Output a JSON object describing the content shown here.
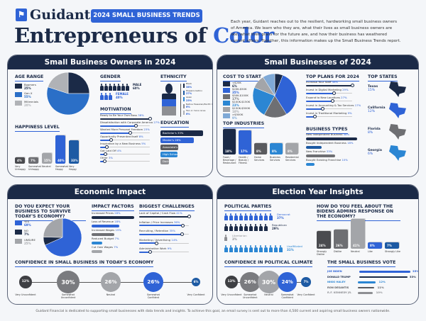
{
  "header": {
    "brand": "Guidant",
    "badge": "2024 SMALL BUSINESS TRENDS",
    "title_main": "Entrepreneurs of ",
    "title_accent": "Color",
    "intro": "Each year, Guidant reaches out to the resilient, hardworking small business owners of America. We learn who they are, what their lives as small business owners are like, what their plans for the future are, and how their business has weathered current affairs. Together, this information makes up the Small Business Trends report."
  },
  "colors": {
    "navy": "#1b2a47",
    "blue": "#2f63d6",
    "mid_blue": "#2b86d3",
    "gray": "#8e8f93",
    "dark_gray": "#5a5b5f",
    "light_gray": "#b0b2b6"
  },
  "owners": {
    "title": "Small Business Owners in 2024",
    "age": {
      "heading": "AGE RANGE",
      "items": [
        {
          "label": "Boomers",
          "value": "25%",
          "v": 25,
          "color": "#1b2a47"
        },
        {
          "label": "Gen X",
          "value": "55%",
          "v": 55,
          "color": "#2b6fc7"
        },
        {
          "label": "Millennials",
          "value": "20%",
          "v": 20,
          "color": "#b0b2b6"
        }
      ]
    },
    "happiness": {
      "heading": "HAPPINESS LEVEL",
      "items": [
        {
          "label": "Very Unhappy",
          "value": "4%",
          "v": 4,
          "color": "#4a4b4f"
        },
        {
          "label": "Somewhat Unhappy",
          "value": "7%",
          "v": 7,
          "color": "#6e6f73"
        },
        {
          "label": "Neutral",
          "value": "15%",
          "v": 15,
          "color": "#a3a5a9"
        },
        {
          "label": "Somewhat Happy",
          "value": "40%",
          "v": 40,
          "color": "#2f63d6"
        },
        {
          "label": "Very Happy",
          "value": "33%",
          "v": 33,
          "color": "#1d5aa3"
        }
      ]
    },
    "gender": {
      "heading": "GENDER",
      "items": [
        {
          "label": "MALE",
          "value": "60%",
          "icons": 7,
          "color": "#1b2a47"
        },
        {
          "label": "FEMALE",
          "value": "40%",
          "icons": 3,
          "color": "#2f63d6"
        }
      ]
    },
    "ethnicity": {
      "heading": "ETHNICITY",
      "items": [
        {
          "label": "Black",
          "value": "38%",
          "color": "#1b2a47"
        },
        {
          "label": "Hispanic/Latino",
          "value": "27%",
          "color": "#1d5aa3"
        },
        {
          "label": "Asian",
          "value": "23%",
          "color": "#2b86d3"
        },
        {
          "label": "Native Hawaiian/Pacific Islander",
          "value": "6%",
          "color": "#8e8f93"
        },
        {
          "label": "Two or more races",
          "value": "6%",
          "color": "#b0b2b6"
        }
      ]
    },
    "motivation": {
      "heading": "MOTIVATION",
      "items": [
        {
          "label": "Ready to Be Your Own Boss",
          "value": "38%",
          "v": 38
        },
        {
          "label": "Dissatisfaction with Corporate America",
          "value": "27%",
          "v": 27
        },
        {
          "label": "Wanted More Personal Freedom",
          "value": "23%",
          "v": 23
        },
        {
          "label": "Opportunity Presented Itself",
          "value": "8%",
          "v": 8
        },
        {
          "label": "Inspiration by a New Business",
          "value": "5%",
          "v": 5
        },
        {
          "label": "Got Laid Off",
          "value": "4%",
          "v": 4
        },
        {
          "label": "Other",
          "value": "3%",
          "v": 3
        }
      ]
    },
    "education": {
      "heading": "EDUCATION",
      "items": [
        {
          "label": "Bachelor's",
          "value": "33%",
          "v": 33,
          "color": "#1b2a47"
        },
        {
          "label": "Master's",
          "value": "26%",
          "v": 26,
          "color": "#2f63d6"
        },
        {
          "label": "Associate's",
          "value": "14%",
          "v": 14,
          "color": "#5a5b5f"
        },
        {
          "label": "High School",
          "value": "13%",
          "v": 13,
          "color": "#2b86d3"
        },
        {
          "label": "Doctorate",
          "value": "6%",
          "v": 6,
          "color": "#8e8f93"
        }
      ]
    }
  },
  "businesses": {
    "title": "Small Businesses of 2024",
    "cost": {
      "heading": "COST TO START",
      "items": [
        {
          "label": "<$20K",
          "value": "6%",
          "v": 6,
          "color": "#1b2a47"
        },
        {
          "label": "$20K-$50K",
          "value": "35%",
          "v": 35,
          "color": "#2f63d6"
        },
        {
          "label": "$50K-$100K",
          "value": "17%",
          "v": 17,
          "color": "#6e6f73"
        },
        {
          "label": "$100K-$150K",
          "value": "23%",
          "v": 23,
          "color": "#2b86d3"
        },
        {
          "label": "$150K-$500K",
          "value": "10%",
          "v": 10,
          "color": "#a3a5a9"
        },
        {
          "label": ">$500K",
          "value": "9%",
          "v": 9,
          "color": "#7fa9d6"
        }
      ]
    },
    "industries": {
      "heading": "TOP INDUSTRIES",
      "items": [
        {
          "label": "Food / Beverage / Restaurant",
          "value": "18%",
          "v": 18,
          "color": "#1b2a47"
        },
        {
          "label": "Health / Beauty / Fitness",
          "value": "17%",
          "v": 17,
          "color": "#2f63d6"
        },
        {
          "label": "Home Services",
          "value": "8%",
          "v": 8,
          "color": "#5a5b5f"
        },
        {
          "label": "Business Services",
          "value": "8%",
          "v": 8,
          "color": "#2b86d3"
        },
        {
          "label": "Residential Services",
          "value": "8%",
          "v": 8,
          "color": "#a3a5a9"
        }
      ]
    },
    "plans": {
      "heading": "TOP PLANS FOR 2024",
      "items": [
        {
          "label": "Increase Your Staff",
          "value": "48%",
          "v": 48
        },
        {
          "label": "Invest in Digital Marketing",
          "value": "29%",
          "v": 29
        },
        {
          "label": "Expand to New Locations",
          "value": "27%",
          "v": 27
        },
        {
          "label": "Invest in Accounting & Tax Services",
          "value": "17%",
          "v": 17
        },
        {
          "label": "Invest in Traditional Marketing",
          "value": "9%",
          "v": 9
        }
      ]
    },
    "types": {
      "heading": "BUSINESS TYPES",
      "items": [
        {
          "label": "New Independent Business",
          "value": "58%",
          "v": 58,
          "color": "#1b2a47"
        },
        {
          "label": "Bought Independent Business",
          "value": "18%",
          "v": 18,
          "color": "#1d5aa3"
        },
        {
          "label": "New Franchise",
          "value": "33%",
          "v": 33,
          "color": "#6e6f73"
        },
        {
          "label": "Bought Existing Franchise",
          "value": "10%",
          "v": 10,
          "color": "#2b86d3"
        }
      ]
    },
    "states": {
      "heading": "TOP STATES",
      "items": [
        {
          "label": "Texas",
          "value": "15%",
          "color": "#1b2a47"
        },
        {
          "label": "California",
          "value": "12%",
          "color": "#2f63d6"
        },
        {
          "label": "Florida",
          "value": "8%",
          "color": "#6e6f73"
        },
        {
          "label": "Georgia",
          "value": "6%",
          "color": "#2b86d3"
        }
      ]
    }
  },
  "economic": {
    "title": "Economic Impact",
    "survive": {
      "heading": "DO YOU EXPECT YOUR BUSINESS TO SURVIVE TODAY'S ECONOMY?",
      "items": [
        {
          "label": "YES",
          "value": "69%",
          "v": 69,
          "color": "#2f63d6"
        },
        {
          "label": "NO",
          "value": "7%",
          "v": 7,
          "color": "#1b2a47"
        },
        {
          "label": "UNSURE",
          "value": "25%",
          "v": 25,
          "color": "#a3a5a9"
        }
      ]
    },
    "factors": {
      "heading": "IMPACT FACTORS",
      "items": [
        {
          "label": "Increased Prices",
          "value": "28%",
          "v": 28,
          "color": "#1b2a47"
        },
        {
          "label": "Loss of Revenue",
          "value": "18%",
          "v": 18,
          "color": "#2f63d6"
        },
        {
          "label": "Increased Wages",
          "value": "15%",
          "v": 15,
          "color": "#6e6f73"
        },
        {
          "label": "Reduced Budget",
          "value": "7%",
          "v": 7,
          "color": "#2b86d3"
        },
        {
          "label": "Cut Own Wages",
          "value": "7%",
          "v": 7,
          "color": "#a3a5a9"
        }
      ]
    },
    "challenges": {
      "heading": "BIGGEST CHALLENGES",
      "items": [
        {
          "label": "Lack of Capital / Cash Flow",
          "value": "41%",
          "v": 41
        },
        {
          "label": "Inflation / Price Increases",
          "value": "36%",
          "v": 36
        },
        {
          "label": "Recruiting / Retention",
          "value": "35%",
          "v": 35
        },
        {
          "label": "Marketing / Advertising",
          "value": "14%",
          "v": 14
        },
        {
          "label": "Administrative Work",
          "value": "9%",
          "v": 9
        }
      ]
    },
    "confidence": {
      "heading": "CONFIDENCE IN SMALL BUSINESS IN TODAY'S ECONOMY",
      "items": [
        {
          "label": "Very Unconfident",
          "value": "12%",
          "v": 12,
          "color": "#3e3f43"
        },
        {
          "label": "Somewhat Unconfident",
          "value": "30%",
          "v": 30,
          "color": "#7a7b7f"
        },
        {
          "label": "Neutral",
          "value": "26%",
          "v": 26,
          "color": "#a3a5a9"
        },
        {
          "label": "Somewhat Confident",
          "value": "26%",
          "v": 26,
          "color": "#2f63d6"
        },
        {
          "label": "Very Confident",
          "value": "6%",
          "v": 6,
          "color": "#1d5aa3"
        }
      ]
    }
  },
  "election": {
    "title": "Election Year Insights",
    "parties": {
      "heading": "POLITICAL PARTIES",
      "items": [
        {
          "label": "Democrat",
          "value": "37%",
          "icons": 10,
          "color": "#2f63d6"
        },
        {
          "label": "Republican",
          "value": "29%",
          "icons": 9,
          "color": "#1b2a47"
        },
        {
          "label": "Libertarian",
          "value": "3%",
          "icons": 1,
          "color": "#8e8f93"
        },
        {
          "label": "Unaffiliated",
          "value": "31%",
          "icons": 12,
          "color": "#2b86d3"
        }
      ]
    },
    "biden": {
      "heading": "HOW DO YOU FEEL ABOUT THE BIDENS ADMINS RESPONSE ON THE ECONOMY?",
      "items": [
        {
          "label": "Strongly Dislike",
          "value": "24%",
          "v": 24,
          "color": "#4a4b4f"
        },
        {
          "label": "Dislike",
          "value": "26%",
          "v": 26,
          "color": "#6e6f73"
        },
        {
          "label": "Neutral",
          "value": "41%",
          "v": 41,
          "color": "#a3a5a9"
        },
        {
          "label": "Like",
          "value": "8%",
          "v": 8,
          "color": "#2f63d6"
        },
        {
          "label": "Strongly Like",
          "value": "7%",
          "v": 7,
          "color": "#1d5aa3"
        }
      ]
    },
    "climate": {
      "heading": "CONFIDENCE IN POLITICAL CLIMATE",
      "items": [
        {
          "label": "Very Unconfident",
          "value": "13%",
          "v": 13,
          "color": "#3e3f43"
        },
        {
          "label": "Somewhat Unconfident",
          "value": "26%",
          "v": 26,
          "color": "#7a7b7f"
        },
        {
          "label": "Neutral",
          "value": "30%",
          "v": 30,
          "color": "#a3a5a9"
        },
        {
          "label": "Somewhat Confident",
          "value": "24%",
          "v": 24,
          "color": "#2f63d6"
        },
        {
          "label": "Very Confident",
          "value": "7%",
          "v": 7,
          "color": "#1d5aa3"
        }
      ]
    },
    "vote": {
      "heading": "THE SMALL BUSINESS VOTE",
      "items": [
        {
          "label": "JOE BIDEN",
          "value": "35%",
          "v": 35,
          "color": "#2f63d6"
        },
        {
          "label": "DONALD TRUMP",
          "value": "33%",
          "v": 33,
          "color": "#1b2a47"
        },
        {
          "label": "NIKKI HALEY",
          "value": "12%",
          "v": 12,
          "color": "#2b86d3"
        },
        {
          "label": "RON DESANTIS",
          "value": "11%",
          "v": 11,
          "color": "#5a5b5f"
        },
        {
          "label": "R.F. KENNEDY JR.",
          "value": "10%",
          "v": 10,
          "color": "#8e8f93"
        }
      ]
    }
  },
  "footer": "Guidant Financial is dedicated to supporting small businesses with data trends and insights. To achieve this goal, an email survey is sent out to more than 4,500 current and aspiring small business owners nationwide."
}
